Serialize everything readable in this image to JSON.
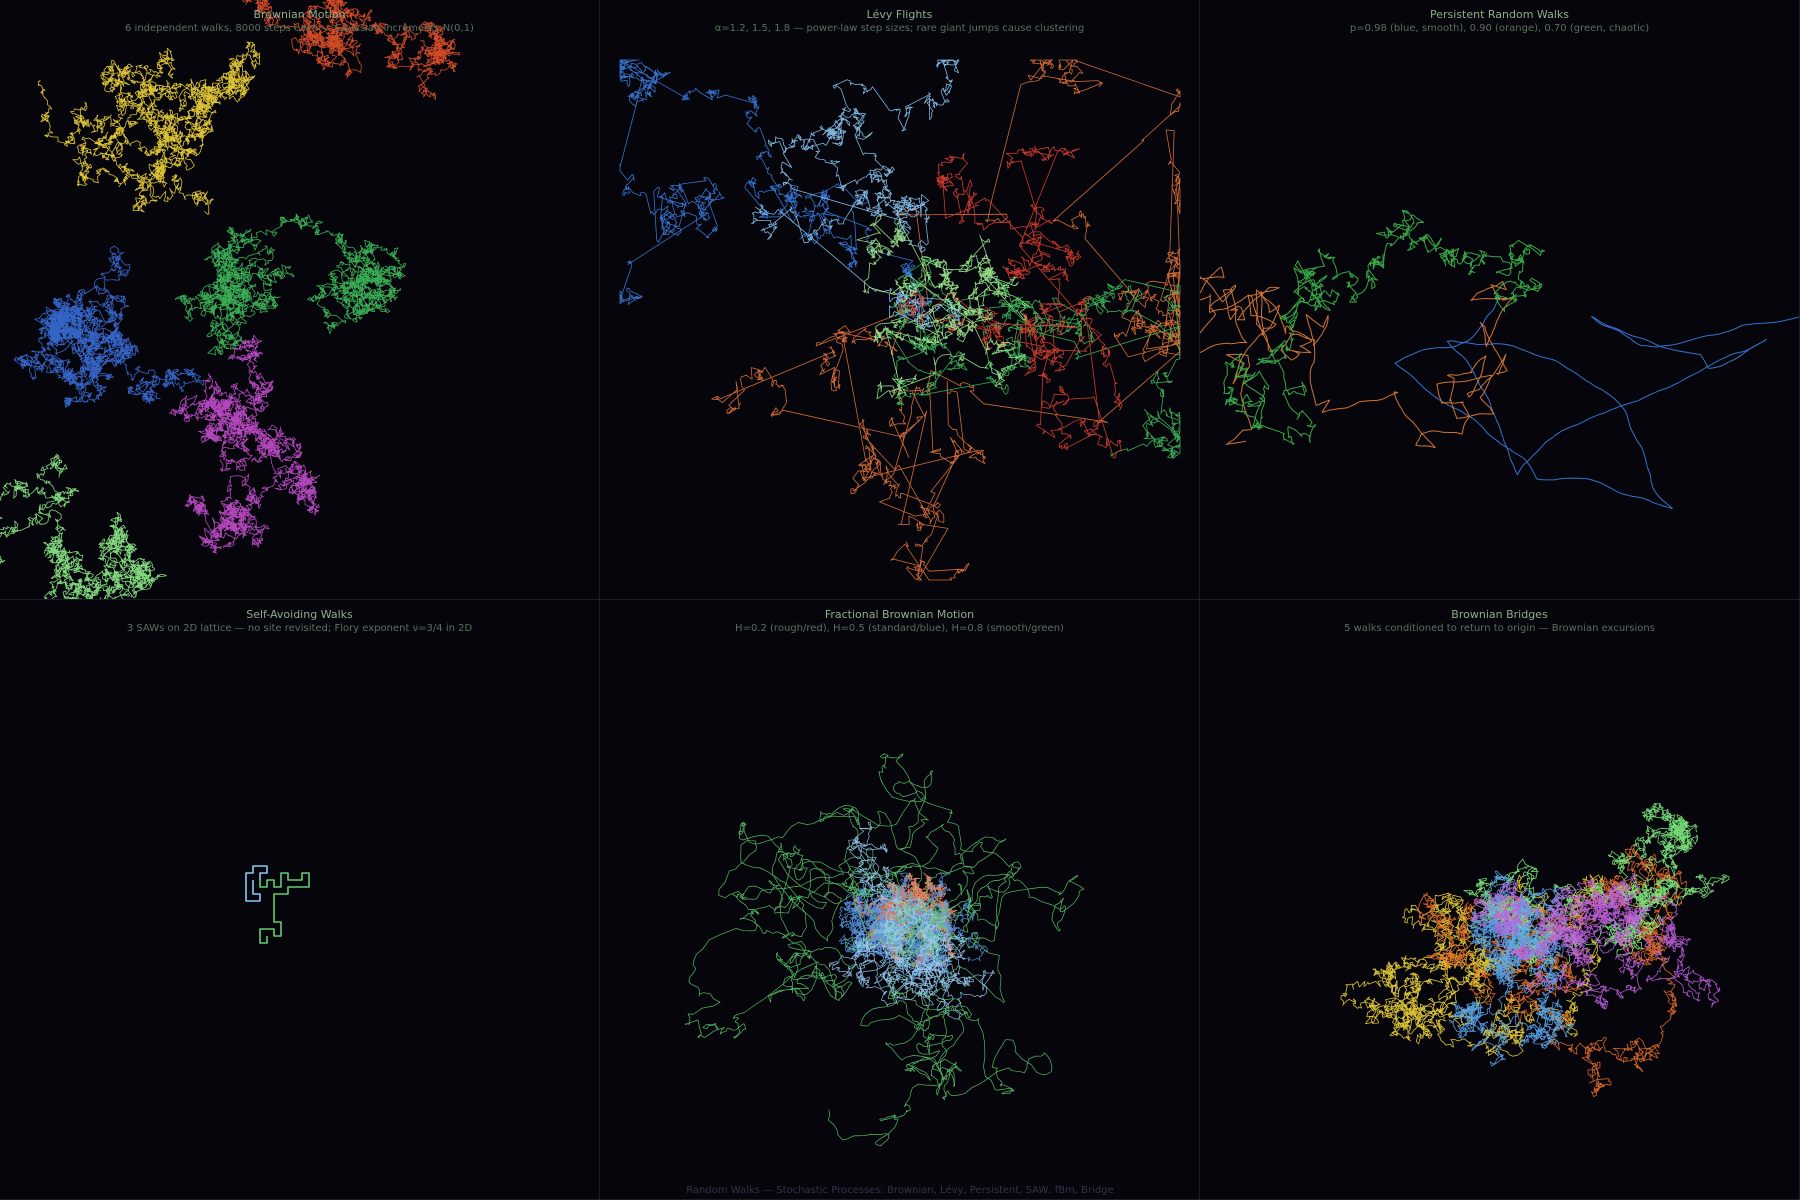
{
  "footer": "Random Walks — Stochastic Processes: Brownian, Lévy, Persistent, SAW, fBm, Bridge",
  "background": "#05050b",
  "chart_data": [
    {
      "type": "line",
      "id": "brownian",
      "title": "Brownian Motion",
      "subtitle": "6 independent walks, 8000 steps each — Gaussian increments N(0,1)",
      "walks": 6,
      "steps": 8000,
      "colors": [
        "#f2d63a",
        "#e8532a",
        "#3fbf5c",
        "#3b6fdc",
        "#c94fd2",
        "#90f08a"
      ]
    },
    {
      "type": "line",
      "id": "levy",
      "title": "Lévy Flights",
      "subtitle": "α=1.2, 1.5, 1.8 — power-law step sizes; rare giant jumps cause clustering",
      "alphas": [
        1.2,
        1.5,
        1.8
      ],
      "colors": [
        "#e8773a",
        "#3fbf5c",
        "#3b7fe2",
        "#8ccaf5",
        "#e04030",
        "#a0f090"
      ]
    },
    {
      "type": "line",
      "id": "persistent",
      "title": "Persistent Random Walks",
      "subtitle": "p=0.98 (blue, smooth), 0.90 (orange), 0.70 (green, chaotic)",
      "p": [
        0.98,
        0.9,
        0.7
      ],
      "colors": [
        "#3b7fe2",
        "#e8823a",
        "#3db84a"
      ]
    },
    {
      "type": "line",
      "id": "saw",
      "title": "Self-Avoiding Walks",
      "subtitle": "3 SAWs on 2D lattice — no site revisited; Flory exponent ν=3/4 in 2D",
      "walks": 3,
      "colors": [
        "#5ed070",
        "#8ccaf5",
        "#3b7fe2",
        "#f08040"
      ]
    },
    {
      "type": "line",
      "id": "fbm",
      "title": "Fractional Brownian Motion",
      "subtitle": "H=0.2 (rough/red), H=0.5 (standard/blue), H=0.8 (smooth/green)",
      "H": [
        0.2,
        0.5,
        0.8
      ],
      "colors": [
        "#f4906a",
        "#5a9ae6",
        "#5ed070",
        "#9ad0f5"
      ]
    },
    {
      "type": "line",
      "id": "bridge",
      "title": "Brownian Bridges",
      "subtitle": "5 walks conditioned to return to origin — Brownian excursions",
      "walks": 5,
      "colors": [
        "#f2d63a",
        "#e8702a",
        "#80ee80",
        "#5aa8f0",
        "#c060e0"
      ]
    }
  ]
}
